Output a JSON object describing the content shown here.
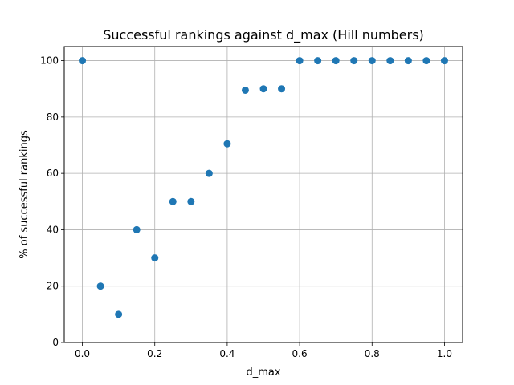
{
  "chart_data": {
    "type": "scatter",
    "title": "Successful rankings against d_max (Hill numbers)",
    "xlabel": "d_max",
    "ylabel": "% of successful rankings",
    "xlim": [
      -0.05,
      1.05
    ],
    "ylim": [
      0,
      105
    ],
    "x_ticks": [
      0.0,
      0.2,
      0.4,
      0.6,
      0.8,
      1.0
    ],
    "x_tick_labels": [
      "0.0",
      "0.2",
      "0.4",
      "0.6",
      "0.8",
      "1.0"
    ],
    "y_ticks": [
      0,
      20,
      40,
      60,
      80,
      100
    ],
    "y_tick_labels": [
      "0",
      "20",
      "40",
      "60",
      "80",
      "100"
    ],
    "grid": true,
    "series": [
      {
        "color": "#1f77b4",
        "x": [
          0.0,
          0.05,
          0.1,
          0.15,
          0.2,
          0.25,
          0.3,
          0.35,
          0.4,
          0.45,
          0.5,
          0.55,
          0.6,
          0.65,
          0.7,
          0.75,
          0.8,
          0.85,
          0.9,
          0.95,
          1.0
        ],
        "y": [
          100,
          20,
          10,
          40,
          30,
          50,
          50,
          60,
          70.5,
          89.5,
          90,
          90,
          100,
          100,
          100,
          100,
          100,
          100,
          100,
          100,
          100
        ]
      }
    ]
  }
}
